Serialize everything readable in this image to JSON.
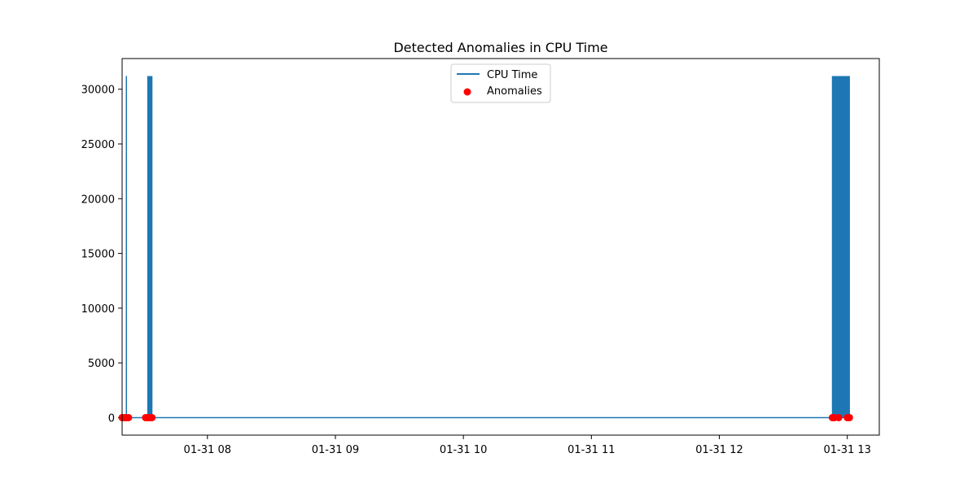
{
  "chart_data": {
    "type": "line",
    "title": "Detected Anomalies in CPU Time",
    "xlabel": "",
    "ylabel": "",
    "x_axis": {
      "type": "time",
      "range": [
        "2024-01-31 07:20",
        "2024-01-31 13:15"
      ],
      "ticks": [
        {
          "value": "2024-01-31 08:00",
          "label": "01-31 08"
        },
        {
          "value": "2024-01-31 09:00",
          "label": "01-31 09"
        },
        {
          "value": "2024-01-31 10:00",
          "label": "01-31 10"
        },
        {
          "value": "2024-01-31 11:00",
          "label": "01-31 11"
        },
        {
          "value": "2024-01-31 12:00",
          "label": "01-31 12"
        },
        {
          "value": "2024-01-31 13:00",
          "label": "01-31 13"
        }
      ]
    },
    "y_axis": {
      "range": [
        -1600,
        32800
      ],
      "ticks": [
        0,
        5000,
        10000,
        15000,
        20000,
        25000,
        30000
      ]
    },
    "grid": false,
    "legend": {
      "placement": "upper center",
      "entries": [
        "CPU Time",
        "Anomalies"
      ]
    },
    "series": [
      {
        "name": "CPU Time",
        "kind": "line",
        "color": "#1f77b4",
        "spikes": [
          {
            "time": "2024-01-31 07:22",
            "peak": 31200
          },
          {
            "from": "2024-01-31 07:32",
            "to": "2024-01-31 07:34",
            "peak": 31200,
            "count": 8
          },
          {
            "from": "2024-01-31 12:53",
            "to": "2024-01-31 13:01",
            "peak": 31200,
            "count": 30
          }
        ],
        "baseline": 0,
        "range": [
          "2024-01-31 07:20",
          "2024-01-31 13:01"
        ]
      },
      {
        "name": "Anomalies",
        "kind": "scatter",
        "color": "#ff0000",
        "points": [
          {
            "x": "2024-01-31 07:20",
            "y": 0
          },
          {
            "x": "2024-01-31 07:21",
            "y": 0
          },
          {
            "x": "2024-01-31 07:22",
            "y": 0
          },
          {
            "x": "2024-01-31 07:23",
            "y": 0
          },
          {
            "x": "2024-01-31 07:31",
            "y": 0
          },
          {
            "x": "2024-01-31 07:32",
            "y": 0
          },
          {
            "x": "2024-01-31 07:33",
            "y": 0
          },
          {
            "x": "2024-01-31 07:34",
            "y": 0
          },
          {
            "x": "2024-01-31 12:53",
            "y": 0
          },
          {
            "x": "2024-01-31 12:54",
            "y": 0
          },
          {
            "x": "2024-01-31 12:56",
            "y": 0
          },
          {
            "x": "2024-01-31 13:00",
            "y": 0
          },
          {
            "x": "2024-01-31 13:01",
            "y": 0
          }
        ]
      }
    ]
  }
}
